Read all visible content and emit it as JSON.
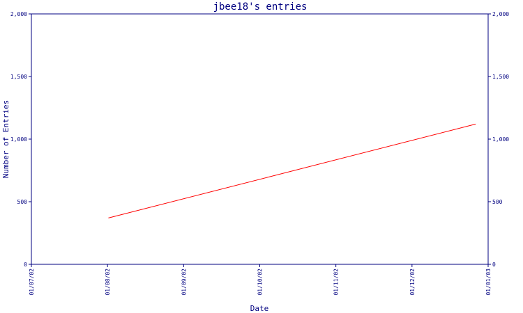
{
  "chart_data": {
    "type": "line",
    "title": "jbee18's entries",
    "xlabel": "Date",
    "ylabel": "Number of Entries",
    "x_tick_labels": [
      "01/07/02",
      "01/08/02",
      "01/09/02",
      "01/10/02",
      "01/11/02",
      "01/12/02",
      "01/01/03"
    ],
    "y_tick_labels": [
      "0",
      "500",
      "1,000",
      "1,500",
      "2,000"
    ],
    "y_tick_values": [
      0,
      500,
      1000,
      1500,
      2000
    ],
    "ylim": [
      0,
      2000
    ],
    "xlim": [
      "2002-07-01",
      "2003-01-01"
    ],
    "grid": false,
    "series": [
      {
        "color": "#ff0000",
        "points": [
          {
            "x": "2002-08-01",
            "y": 370
          },
          {
            "x": "2002-12-27",
            "y": 1120
          }
        ]
      }
    ],
    "colors": {
      "axis": "#000080",
      "line": "#ff0000",
      "background": "#ffffff"
    }
  }
}
